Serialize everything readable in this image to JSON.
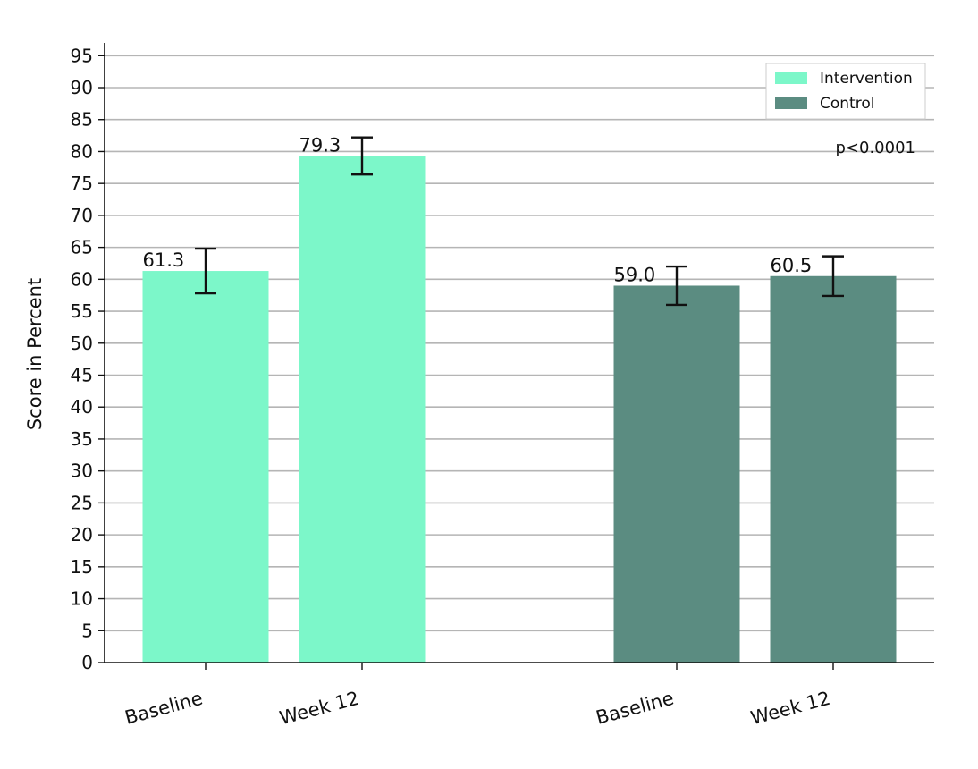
{
  "chart_data": {
    "type": "bar",
    "title": "",
    "ylabel": "Score in Percent",
    "xlabel": "",
    "ylim": [
      0,
      97
    ],
    "yticks": [
      0,
      5,
      10,
      15,
      20,
      25,
      30,
      35,
      40,
      45,
      50,
      55,
      60,
      65,
      70,
      75,
      80,
      85,
      90,
      95
    ],
    "grid": "horizontal",
    "legend_position": "top-right",
    "annotation": "p<0.0001",
    "series": [
      {
        "name": "Intervention",
        "color": "#7cf7c9",
        "categories": [
          "Baseline",
          "Week 12"
        ],
        "values": [
          61.3,
          79.3
        ],
        "value_labels": [
          "61.3",
          "79.3"
        ],
        "error": [
          3.5,
          2.9
        ]
      },
      {
        "name": "Control",
        "color": "#5b8c81",
        "categories": [
          "Baseline",
          "Week 12"
        ],
        "values": [
          59.0,
          60.5
        ],
        "value_labels": [
          "59.0",
          "60.5"
        ],
        "error": [
          3.0,
          3.1
        ]
      }
    ]
  }
}
